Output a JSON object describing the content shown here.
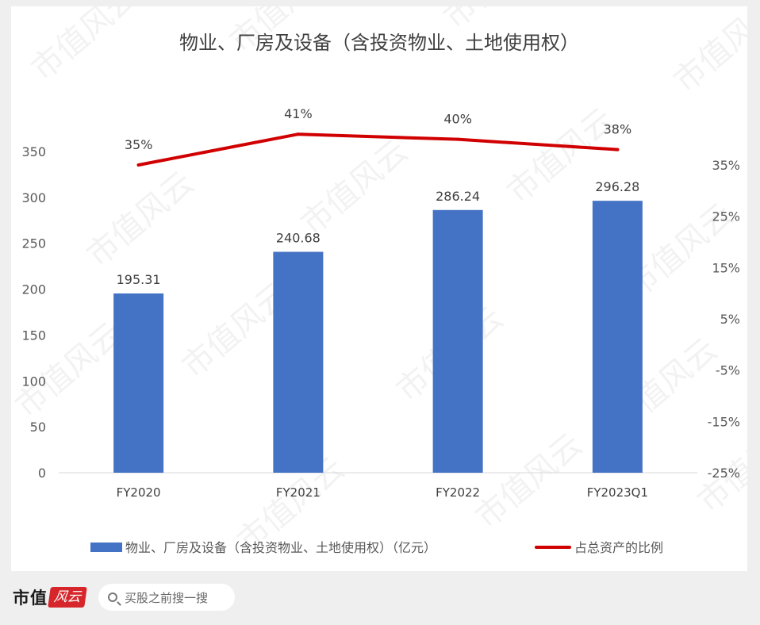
{
  "chart_data": {
    "type": "bar",
    "title": "物业、厂房及设备（含投资物业、土地使用权）",
    "categories": [
      "FY2020",
      "FY2021",
      "FY2022",
      "FY2023Q1"
    ],
    "series": [
      {
        "name": "物业、厂房及设备（含投资物业、土地使用权）（亿元）",
        "type": "bar",
        "axis": "left",
        "color": "#4472c4",
        "values": [
          195.31,
          240.68,
          286.24,
          296.28
        ],
        "labels": [
          "195.31",
          "240.68",
          "286.24",
          "296.28"
        ]
      },
      {
        "name": "占总资产的比例",
        "type": "line",
        "axis": "right",
        "color": "#d10000",
        "values": [
          35,
          41,
          40,
          38
        ],
        "labels": [
          "35%",
          "41%",
          "40%",
          "38%"
        ]
      }
    ],
    "y_left": {
      "min": 0,
      "max": 350,
      "ticks": [
        "0",
        "50",
        "100",
        "150",
        "200",
        "250",
        "300",
        "350"
      ]
    },
    "y_right": {
      "min": -25,
      "max": 35,
      "ticks": [
        "-25%",
        "-15%",
        "-5%",
        "5%",
        "15%",
        "25%",
        "35%"
      ]
    },
    "legend": "bottom",
    "grid": false
  },
  "watermark": "市值风云",
  "footer": {
    "brand_text": "市值",
    "brand_seal": "风云",
    "search_placeholder": "买股之前搜一搜"
  }
}
